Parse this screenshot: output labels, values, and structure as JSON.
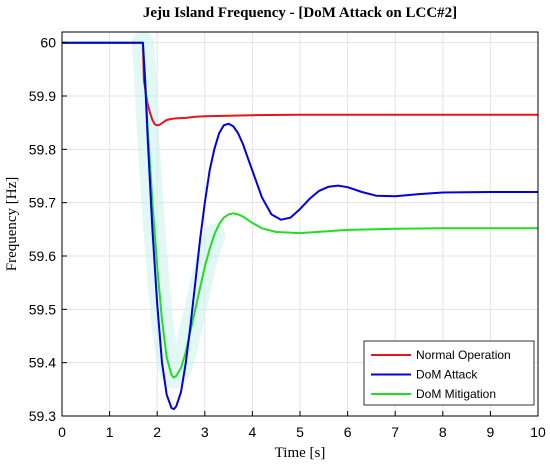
{
  "chart_data": {
    "type": "line",
    "title": "Jeju Island Frequency - [DoM Attack on LCC#2]",
    "xlabel": "Time [s]",
    "ylabel": "Frequency [Hz]",
    "xlim": [
      0,
      10
    ],
    "ylim": [
      59.3,
      60.02
    ],
    "xticks": [
      0,
      1,
      2,
      3,
      4,
      5,
      6,
      7,
      8,
      9,
      10
    ],
    "yticks": [
      59.3,
      59.4,
      59.5,
      59.6,
      59.7,
      59.8,
      59.9,
      60
    ],
    "ytick_labels": [
      "59.3",
      "59.4",
      "59.5",
      "59.6",
      "59.7",
      "59.8",
      "59.9",
      "60"
    ],
    "grid": true,
    "legend_position": "bottom-right",
    "series": [
      {
        "name": "Normal Operation",
        "color": "#e8141c",
        "x": [
          0,
          1.7,
          1.72,
          1.76,
          1.8,
          1.85,
          1.9,
          1.95,
          2.0,
          2.05,
          2.1,
          2.15,
          2.2,
          2.3,
          2.4,
          2.6,
          2.8,
          3.0,
          3.5,
          4.0,
          5.0,
          6.0,
          8.0,
          10.0
        ],
        "y": [
          60.0,
          60.0,
          59.93,
          59.905,
          59.885,
          59.868,
          59.855,
          59.847,
          59.845,
          59.846,
          59.849,
          59.852,
          59.855,
          59.857,
          59.858,
          59.859,
          59.861,
          59.862,
          59.863,
          59.864,
          59.865,
          59.865,
          59.865,
          59.865
        ]
      },
      {
        "name": "DoM Attack",
        "color": "#0000e0",
        "x": [
          0,
          1.7,
          1.75,
          1.8,
          1.9,
          2.0,
          2.1,
          2.2,
          2.3,
          2.35,
          2.4,
          2.5,
          2.6,
          2.7,
          2.8,
          2.9,
          3.0,
          3.1,
          3.2,
          3.3,
          3.4,
          3.5,
          3.6,
          3.7,
          3.8,
          3.9,
          4.0,
          4.2,
          4.4,
          4.6,
          4.8,
          5.0,
          5.2,
          5.4,
          5.6,
          5.8,
          6.0,
          6.3,
          6.6,
          7.0,
          7.5,
          8.0,
          9.0,
          10.0
        ],
        "y": [
          60.0,
          60.0,
          59.92,
          59.82,
          59.65,
          59.51,
          59.4,
          59.34,
          59.315,
          59.313,
          59.318,
          59.345,
          59.4,
          59.47,
          59.55,
          59.63,
          59.7,
          59.76,
          59.8,
          59.83,
          59.845,
          59.848,
          59.843,
          59.83,
          59.81,
          59.785,
          59.76,
          59.71,
          59.678,
          59.668,
          59.672,
          59.688,
          59.707,
          59.722,
          59.73,
          59.732,
          59.729,
          59.72,
          59.713,
          59.712,
          59.716,
          59.719,
          59.72,
          59.72
        ]
      },
      {
        "name": "DoM Mitigation",
        "color": "#22dd22",
        "x": [
          0,
          1.7,
          1.75,
          1.8,
          1.9,
          2.0,
          2.1,
          2.2,
          2.3,
          2.35,
          2.4,
          2.5,
          2.6,
          2.7,
          2.8,
          2.9,
          3.0,
          3.1,
          3.2,
          3.3,
          3.4,
          3.5,
          3.6,
          3.7,
          3.8,
          3.9,
          4.0,
          4.2,
          4.5,
          5.0,
          5.5,
          6.0,
          7.0,
          8.0,
          10.0
        ],
        "y": [
          60.0,
          60.0,
          59.93,
          59.84,
          59.7,
          59.58,
          59.48,
          59.41,
          59.377,
          59.372,
          59.375,
          59.39,
          59.42,
          59.46,
          59.5,
          59.54,
          59.58,
          59.613,
          59.64,
          59.66,
          59.672,
          59.678,
          59.68,
          59.678,
          59.674,
          59.668,
          59.662,
          59.652,
          59.645,
          59.643,
          59.646,
          59.649,
          59.651,
          59.652,
          59.652
        ]
      }
    ]
  }
}
